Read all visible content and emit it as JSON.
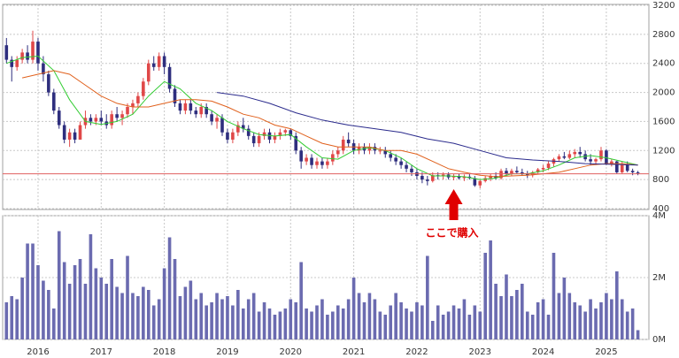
{
  "chart_data": {
    "type": "candlestick",
    "categories": [
      null,
      null,
      null,
      null,
      null,
      null,
      "2016",
      null,
      null,
      null,
      null,
      null,
      null,
      null,
      null,
      null,
      null,
      null,
      "2017",
      null,
      null,
      null,
      null,
      null,
      null,
      null,
      null,
      null,
      null,
      null,
      "2018",
      null,
      null,
      null,
      null,
      null,
      null,
      null,
      null,
      null,
      null,
      null,
      "2019",
      null,
      null,
      null,
      null,
      null,
      null,
      null,
      null,
      null,
      null,
      null,
      "2020",
      null,
      null,
      null,
      null,
      null,
      null,
      null,
      null,
      null,
      null,
      null,
      "2021",
      null,
      null,
      null,
      null,
      null,
      null,
      null,
      null,
      null,
      null,
      null,
      "2022",
      null,
      null,
      null,
      null,
      null,
      null,
      null,
      null,
      null,
      null,
      null,
      "2023",
      null,
      null,
      null,
      null,
      null,
      null,
      null,
      null,
      null,
      null,
      null,
      "2024",
      null,
      null,
      null,
      null,
      null,
      null,
      null,
      null,
      null,
      null,
      null,
      "2025",
      null,
      null,
      null,
      null,
      null,
      null
    ],
    "open": [
      2650,
      2450,
      2350,
      2450,
      2550,
      2450,
      2700,
      2400,
      2250,
      2000,
      1750,
      1550,
      1350,
      1450,
      1350,
      1550,
      1650,
      1600,
      1650,
      1600,
      1550,
      1700,
      1650,
      1700,
      1800,
      1850,
      1950,
      2150,
      2400,
      2350,
      2500,
      2350,
      2050,
      1850,
      1750,
      1850,
      1750,
      1700,
      1800,
      1700,
      1600,
      1650,
      1450,
      1350,
      1450,
      1550,
      1500,
      1400,
      1300,
      1400,
      1450,
      1350,
      1400,
      1450,
      1480,
      1400,
      1200,
      1050,
      1100,
      1000,
      1050,
      1000,
      1050,
      1150,
      1200,
      1350,
      1300,
      1200,
      1250,
      1200,
      1250,
      1200,
      1200,
      1150,
      1100,
      1050,
      1000,
      950,
      900,
      850,
      800,
      780,
      860,
      850,
      870,
      830,
      850,
      820,
      840,
      820,
      720,
      780,
      820,
      850,
      820,
      920,
      880,
      920,
      900,
      880,
      860,
      900,
      940,
      960,
      1020,
      1080,
      1120,
      1100,
      1150,
      1180,
      1150,
      1080,
      1050,
      1080,
      1200,
      1020,
      1050,
      900,
      1000,
      920,
      900
    ],
    "high": [
      2750,
      2500,
      2500,
      2600,
      2650,
      2850,
      2750,
      2500,
      2300,
      2050,
      1800,
      1600,
      1500,
      1500,
      1600,
      1750,
      1700,
      1700,
      1750,
      1700,
      1750,
      1800,
      1750,
      1850,
      1900,
      2000,
      2200,
      2450,
      2500,
      2550,
      2550,
      2400,
      2100,
      1900,
      1900,
      1900,
      1800,
      1850,
      1850,
      1750,
      1700,
      1700,
      1500,
      1500,
      1600,
      1650,
      1550,
      1450,
      1450,
      1500,
      1500,
      1450,
      1500,
      1500,
      1500,
      1450,
      1250,
      1150,
      1150,
      1100,
      1100,
      1100,
      1200,
      1250,
      1400,
      1450,
      1350,
      1300,
      1300,
      1300,
      1300,
      1250,
      1250,
      1200,
      1150,
      1100,
      1050,
      1000,
      950,
      900,
      850,
      900,
      900,
      900,
      900,
      880,
      880,
      870,
      880,
      850,
      800,
      850,
      880,
      900,
      950,
      960,
      950,
      980,
      950,
      920,
      920,
      960,
      1000,
      1050,
      1100,
      1150,
      1180,
      1200,
      1220,
      1250,
      1200,
      1150,
      1100,
      1250,
      1220,
      1080,
      1060,
      1050,
      1050,
      950,
      920
    ],
    "low": [
      2400,
      2150,
      2300,
      2400,
      2400,
      2400,
      2300,
      2150,
      1950,
      1700,
      1500,
      1300,
      1250,
      1300,
      1350,
      1500,
      1550,
      1550,
      1550,
      1500,
      1500,
      1600,
      1550,
      1650,
      1700,
      1800,
      1900,
      2100,
      2300,
      2300,
      2250,
      2000,
      1800,
      1700,
      1700,
      1700,
      1650,
      1650,
      1650,
      1550,
      1500,
      1400,
      1300,
      1300,
      1400,
      1450,
      1350,
      1250,
      1250,
      1350,
      1300,
      1300,
      1350,
      1400,
      1350,
      1150,
      950,
      1000,
      950,
      950,
      950,
      950,
      1000,
      1100,
      1150,
      1250,
      1150,
      1150,
      1150,
      1150,
      1150,
      1150,
      1100,
      1050,
      1000,
      950,
      900,
      850,
      800,
      750,
      720,
      760,
      800,
      800,
      800,
      790,
      800,
      780,
      800,
      700,
      680,
      760,
      780,
      800,
      800,
      850,
      850,
      880,
      850,
      820,
      830,
      870,
      900,
      930,
      980,
      1050,
      1080,
      1080,
      1100,
      1100,
      1050,
      1000,
      1000,
      1050,
      1000,
      980,
      880,
      880,
      900,
      860,
      860
    ],
    "close": [
      2450,
      2350,
      2450,
      2550,
      2450,
      2700,
      2400,
      2250,
      2000,
      1750,
      1550,
      1350,
      1450,
      1350,
      1550,
      1650,
      1600,
      1650,
      1600,
      1550,
      1700,
      1650,
      1700,
      1800,
      1850,
      1950,
      2150,
      2400,
      2350,
      2500,
      2350,
      2050,
      1850,
      1750,
      1850,
      1750,
      1700,
      1800,
      1700,
      1600,
      1650,
      1450,
      1350,
      1450,
      1550,
      1500,
      1400,
      1300,
      1400,
      1450,
      1350,
      1400,
      1450,
      1480,
      1400,
      1200,
      1050,
      1100,
      1000,
      1050,
      1000,
      1050,
      1150,
      1200,
      1350,
      1300,
      1200,
      1250,
      1200,
      1250,
      1200,
      1200,
      1150,
      1100,
      1050,
      1000,
      950,
      900,
      850,
      800,
      780,
      860,
      850,
      870,
      830,
      850,
      820,
      840,
      820,
      720,
      780,
      820,
      850,
      820,
      920,
      880,
      920,
      900,
      880,
      860,
      900,
      940,
      960,
      1020,
      1080,
      1120,
      1100,
      1150,
      1180,
      1150,
      1080,
      1050,
      1080,
      1200,
      1020,
      1050,
      900,
      1000,
      920,
      900,
      890
    ],
    "up_color": "#e04848",
    "down_color": "#2e2e7e",
    "ylim": [
      400,
      3200
    ],
    "yticks": [
      400,
      800,
      1200,
      1600,
      2000,
      2400,
      2800,
      3200
    ],
    "grid": true,
    "lines": [
      {
        "color": "#33cc33",
        "x": [
          0,
          3,
          6,
          9,
          12,
          15,
          18,
          21,
          24,
          27,
          30,
          33,
          36,
          39,
          42,
          45,
          48,
          51,
          54,
          57,
          60,
          63,
          66,
          69,
          72,
          75,
          78,
          81,
          84,
          87,
          90,
          93,
          96,
          99,
          102,
          105,
          108,
          111,
          114,
          117,
          120
        ],
        "values": [
          2400,
          2480,
          2500,
          2300,
          1900,
          1600,
          1560,
          1600,
          1700,
          1950,
          2150,
          2050,
          1850,
          1750,
          1600,
          1500,
          1420,
          1400,
          1420,
          1250,
          1100,
          1080,
          1200,
          1240,
          1200,
          1100,
          950,
          850,
          850,
          840,
          800,
          820,
          880,
          880,
          920,
          1000,
          1100,
          1130,
          1100,
          1050,
          1000
        ]
      },
      {
        "color": "#e0601c",
        "x": [
          3,
          6,
          9,
          12,
          15,
          18,
          21,
          24,
          27,
          30,
          33,
          36,
          39,
          42,
          45,
          48,
          51,
          54,
          57,
          60,
          63,
          66,
          69,
          72,
          75,
          78,
          81,
          84,
          87,
          90,
          93,
          96,
          99,
          102,
          105,
          108,
          111,
          114,
          117,
          120
        ],
        "values": [
          2200,
          2250,
          2300,
          2250,
          2100,
          1950,
          1850,
          1800,
          1800,
          1850,
          1900,
          1900,
          1880,
          1800,
          1700,
          1650,
          1550,
          1500,
          1400,
          1300,
          1250,
          1250,
          1250,
          1200,
          1200,
          1150,
          1050,
          950,
          900,
          860,
          840,
          850,
          860,
          880,
          900,
          950,
          1000,
          1020,
          1020,
          1000
        ]
      },
      {
        "color": "#2a2a8c",
        "x": [
          40,
          45,
          50,
          55,
          60,
          65,
          70,
          75,
          80,
          85,
          90,
          95,
          100,
          105,
          110,
          115,
          120
        ],
        "values": [
          2000,
          1950,
          1850,
          1720,
          1620,
          1550,
          1500,
          1450,
          1360,
          1300,
          1200,
          1100,
          1070,
          1050,
          1020,
          1010,
          1000
        ]
      }
    ],
    "price_line": {
      "value": 880,
      "color": "#e06060"
    },
    "annotation": {
      "text": "ここで購入",
      "index": 85,
      "color": "#e00000"
    },
    "volume": {
      "color": "#6b6bb0",
      "ylim": [
        0,
        4
      ],
      "yticks": [
        {
          "value": 0,
          "label": "0M"
        },
        {
          "value": 2,
          "label": "2M"
        },
        {
          "value": 4,
          "label": "4M"
        }
      ],
      "values": [
        1.2,
        1.4,
        1.3,
        2.0,
        3.1,
        3.1,
        2.4,
        1.9,
        1.6,
        1.0,
        3.5,
        2.5,
        1.8,
        2.4,
        2.6,
        1.8,
        3.4,
        2.3,
        2.0,
        1.8,
        2.6,
        1.7,
        1.5,
        2.7,
        1.5,
        1.4,
        1.7,
        1.6,
        1.1,
        1.3,
        2.3,
        3.3,
        2.6,
        1.4,
        1.7,
        1.9,
        1.3,
        1.5,
        1.1,
        1.2,
        1.5,
        1.3,
        1.4,
        1.1,
        1.6,
        1.0,
        1.3,
        1.5,
        0.9,
        1.2,
        1.0,
        0.8,
        0.9,
        1.0,
        1.3,
        1.2,
        2.5,
        1.0,
        0.9,
        1.1,
        1.3,
        0.8,
        0.9,
        1.1,
        1.0,
        1.3,
        2.0,
        1.5,
        1.2,
        1.5,
        1.3,
        0.9,
        0.8,
        1.1,
        1.5,
        1.2,
        1.0,
        0.9,
        1.2,
        1.1,
        2.7,
        0.6,
        1.1,
        0.8,
        0.9,
        1.1,
        1.0,
        1.3,
        0.8,
        1.1,
        0.9,
        2.8,
        3.2,
        1.8,
        1.4,
        2.1,
        1.4,
        1.6,
        1.8,
        0.9,
        0.8,
        1.2,
        1.3,
        0.8,
        2.8,
        1.5,
        2.0,
        1.5,
        1.2,
        1.1,
        0.9,
        1.3,
        1.0,
        1.2,
        1.5,
        1.3,
        2.2,
        1.3,
        0.9,
        1.0,
        0.3
      ]
    }
  }
}
